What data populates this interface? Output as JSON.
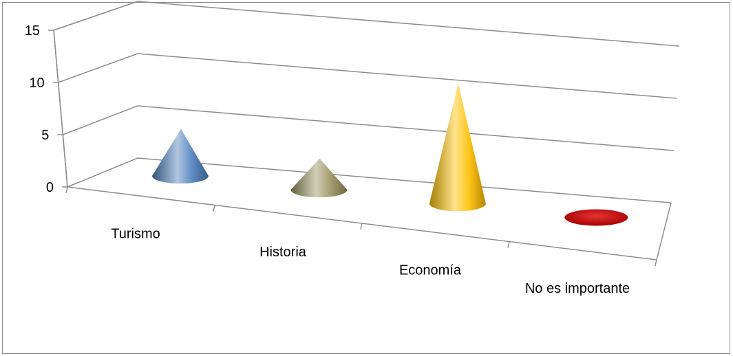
{
  "chart_data": {
    "type": "bar",
    "bar_shape": "cone",
    "three_d": true,
    "categories": [
      "Turismo",
      "Historia",
      "Economía",
      "No es importante"
    ],
    "values": [
      4.5,
      3,
      11.5,
      0
    ],
    "colors": [
      "#4f81bd",
      "#9b9460",
      "#ffc000",
      "#e00000"
    ],
    "title": "",
    "xlabel": "",
    "ylabel": "",
    "ylim": [
      0,
      15
    ],
    "yticks": [
      0,
      5,
      10,
      15
    ],
    "grid": true,
    "legend": "none"
  }
}
